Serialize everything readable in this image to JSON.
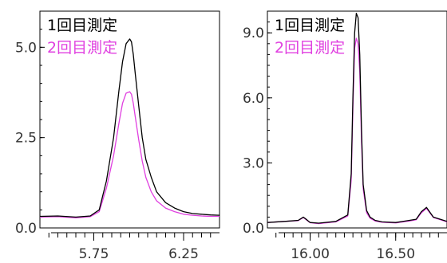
{
  "chart_data": [
    {
      "type": "line",
      "xlim": [
        5.45,
        6.45
      ],
      "ylim": [
        0.0,
        6.0
      ],
      "xticks": [
        5.75,
        6.25
      ],
      "xtick_labels": [
        "5.75",
        "6.25"
      ],
      "yticks": [
        0.0,
        2.5,
        5.0
      ],
      "ytick_labels": [
        "0.0",
        "2.5",
        "5.0"
      ],
      "legend_position": "top-left",
      "series": [
        {
          "name": "1回目測定",
          "color": "#000000",
          "x": [
            5.45,
            5.55,
            5.65,
            5.73,
            5.78,
            5.82,
            5.86,
            5.89,
            5.91,
            5.93,
            5.95,
            5.96,
            5.97,
            5.98,
            6.0,
            6.02,
            6.04,
            6.07,
            6.1,
            6.15,
            6.2,
            6.25,
            6.3,
            6.35,
            6.4,
            6.45
          ],
          "y": [
            0.32,
            0.33,
            0.3,
            0.33,
            0.5,
            1.3,
            2.5,
            3.8,
            4.6,
            5.1,
            5.23,
            5.15,
            4.8,
            4.3,
            3.4,
            2.5,
            1.9,
            1.4,
            1.0,
            0.7,
            0.55,
            0.45,
            0.4,
            0.38,
            0.36,
            0.35
          ]
        },
        {
          "name": "2回目測定",
          "color": "#e040e0",
          "x": [
            5.45,
            5.55,
            5.65,
            5.73,
            5.78,
            5.82,
            5.86,
            5.89,
            5.91,
            5.93,
            5.95,
            5.96,
            5.97,
            5.98,
            6.0,
            6.02,
            6.04,
            6.07,
            6.1,
            6.15,
            6.2,
            6.25,
            6.3,
            6.35,
            6.4,
            6.45
          ],
          "y": [
            0.3,
            0.31,
            0.28,
            0.31,
            0.45,
            1.1,
            2.0,
            2.9,
            3.45,
            3.73,
            3.77,
            3.7,
            3.45,
            3.1,
            2.45,
            1.85,
            1.4,
            1.0,
            0.75,
            0.55,
            0.45,
            0.38,
            0.35,
            0.33,
            0.32,
            0.32
          ]
        }
      ]
    },
    {
      "type": "line",
      "xlim": [
        15.75,
        16.8
      ],
      "ylim": [
        0.0,
        10.0
      ],
      "xticks": [
        16.0,
        16.5
      ],
      "xtick_labels": [
        "16.00",
        "16.50"
      ],
      "yticks": [
        0.0,
        3.0,
        6.0,
        9.0
      ],
      "ytick_labels": [
        "0.0",
        "3.0",
        "6.0",
        "9.0"
      ],
      "legend_position": "top-left",
      "series": [
        {
          "name": "1回目測定",
          "color": "#000000",
          "x": [
            15.75,
            15.85,
            15.93,
            15.96,
            15.98,
            16.0,
            16.05,
            16.15,
            16.22,
            16.24,
            16.25,
            16.26,
            16.27,
            16.28,
            16.29,
            16.3,
            16.31,
            16.33,
            16.35,
            16.38,
            16.42,
            16.5,
            16.58,
            16.62,
            16.65,
            16.68,
            16.72,
            16.8
          ],
          "y": [
            0.25,
            0.3,
            0.35,
            0.5,
            0.38,
            0.25,
            0.22,
            0.3,
            0.6,
            2.5,
            6.0,
            9.0,
            9.9,
            9.7,
            8.0,
            4.5,
            2.0,
            0.8,
            0.5,
            0.35,
            0.28,
            0.25,
            0.35,
            0.4,
            0.75,
            0.95,
            0.5,
            0.3
          ]
        },
        {
          "name": "2回目測定",
          "color": "#e040e0",
          "x": [
            15.75,
            15.85,
            15.93,
            15.96,
            15.98,
            16.0,
            16.05,
            16.15,
            16.22,
            16.24,
            16.25,
            16.26,
            16.27,
            16.28,
            16.29,
            16.3,
            16.31,
            16.33,
            16.35,
            16.38,
            16.42,
            16.5,
            16.58,
            16.62,
            16.65,
            16.68,
            16.72,
            16.8
          ],
          "y": [
            0.25,
            0.3,
            0.34,
            0.48,
            0.36,
            0.24,
            0.2,
            0.28,
            0.55,
            2.2,
            5.5,
            8.3,
            8.75,
            8.5,
            7.2,
            4.0,
            1.8,
            0.7,
            0.45,
            0.32,
            0.26,
            0.23,
            0.32,
            0.38,
            0.7,
            0.9,
            0.48,
            0.28
          ]
        }
      ]
    }
  ]
}
